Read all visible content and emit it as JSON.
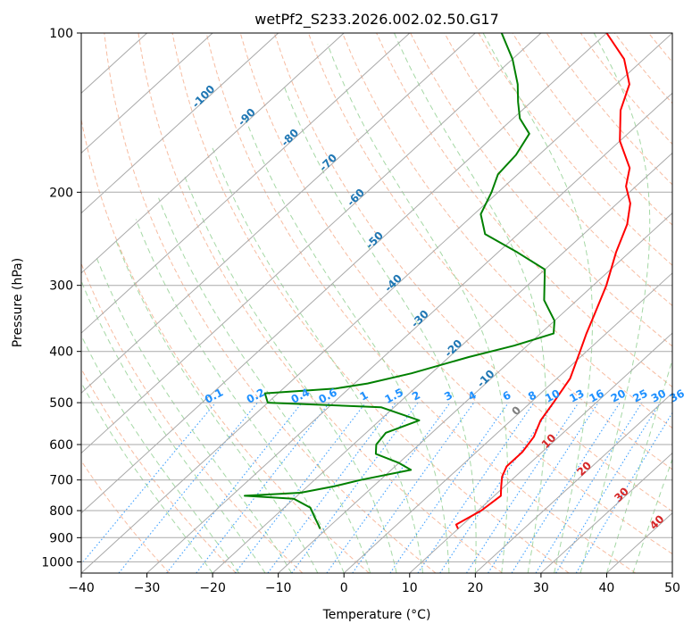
{
  "chart_data": {
    "type": "line",
    "subtype": "skew-t log-p",
    "title": "wetPf2_S233.2026.002.02.50.G17",
    "xlabel": "Temperature (°C)",
    "ylabel": "Pressure (hPa)",
    "xlim": [
      -40,
      50
    ],
    "ylim": [
      1050,
      100
    ],
    "yscale": "log",
    "x_ticks": [
      -40,
      -30,
      -20,
      -10,
      0,
      10,
      20,
      30,
      40,
      50
    ],
    "y_ticks": [
      100,
      200,
      300,
      400,
      500,
      600,
      700,
      800,
      900,
      1000
    ],
    "grid": true,
    "series": [
      {
        "color": "#ff0000",
        "points": [
          [
            866,
            10.0
          ],
          [
            850,
            9.0
          ],
          [
            800,
            10.5
          ],
          [
            750,
            11.0
          ],
          [
            720,
            9.5
          ],
          [
            690,
            8.0
          ],
          [
            660,
            7.0
          ],
          [
            620,
            7.0
          ],
          [
            580,
            6.2
          ],
          [
            540,
            4.5
          ],
          [
            500,
            3.5
          ],
          [
            450,
            2.0
          ],
          [
            400,
            -1.0
          ],
          [
            370,
            -3.0
          ],
          [
            340,
            -5.0
          ],
          [
            300,
            -8.0
          ],
          [
            260,
            -12.0
          ],
          [
            230,
            -15.0
          ],
          [
            210,
            -18.0
          ],
          [
            195,
            -21.5
          ],
          [
            180,
            -24.0
          ],
          [
            160,
            -30.0
          ],
          [
            140,
            -35.0
          ],
          [
            125,
            -38.0
          ],
          [
            112,
            -43.0
          ],
          [
            100,
            -50.0
          ]
        ]
      },
      {
        "color": "#008000",
        "points": [
          [
            866,
            -11.0
          ],
          [
            850,
            -12.0
          ],
          [
            820,
            -14.0
          ],
          [
            790,
            -16.0
          ],
          [
            760,
            -20.0
          ],
          [
            750,
            -28.0
          ],
          [
            740,
            -20.0
          ],
          [
            720,
            -16.0
          ],
          [
            700,
            -13.0
          ],
          [
            670,
            -7.0
          ],
          [
            650,
            -10.0
          ],
          [
            625,
            -15.0
          ],
          [
            600,
            -16.5
          ],
          [
            570,
            -17.0
          ],
          [
            540,
            -14.0
          ],
          [
            510,
            -22.0
          ],
          [
            500,
            -40.0
          ],
          [
            480,
            -42.0
          ],
          [
            470,
            -32.0
          ],
          [
            460,
            -28.0
          ],
          [
            440,
            -23.0
          ],
          [
            410,
            -17.0
          ],
          [
            390,
            -12.0
          ],
          [
            370,
            -8.0
          ],
          [
            350,
            -10.0
          ],
          [
            320,
            -15.0
          ],
          [
            280,
            -20.0
          ],
          [
            260,
            -27.0
          ],
          [
            240,
            -35.0
          ],
          [
            220,
            -39.0
          ],
          [
            200,
            -41.0
          ],
          [
            185,
            -43.0
          ],
          [
            170,
            -43.5
          ],
          [
            155,
            -45.0
          ],
          [
            145,
            -49.0
          ],
          [
            135,
            -52.0
          ],
          [
            125,
            -55.0
          ],
          [
            112,
            -60.0
          ],
          [
            100,
            -66.0
          ]
        ]
      }
    ],
    "isotherm_labels": [
      "-100",
      "-90",
      "-80",
      "-70",
      "-60",
      "-50",
      "-40",
      "-30",
      "-20",
      "-10",
      "0",
      "10",
      "20",
      "30",
      "40"
    ],
    "isotherm_label_colors": {
      "cold": "#1f77b4",
      "zero": "#7f7f7f",
      "warm": "#d62728"
    },
    "mixing_ratio_labels": [
      "0.1",
      "0.2",
      "0.4",
      "0.6",
      "1",
      "1.5",
      "2",
      "3",
      "4",
      "6",
      "8",
      "10",
      "13",
      "16",
      "20",
      "25",
      "30",
      "36"
    ],
    "mixing_ratio_color": "#1e90ff",
    "dry_adiabat_color": "#f4a582",
    "moist_adiabat_color": "#8fce8f",
    "isotherm_color": "#a9a9a9"
  }
}
